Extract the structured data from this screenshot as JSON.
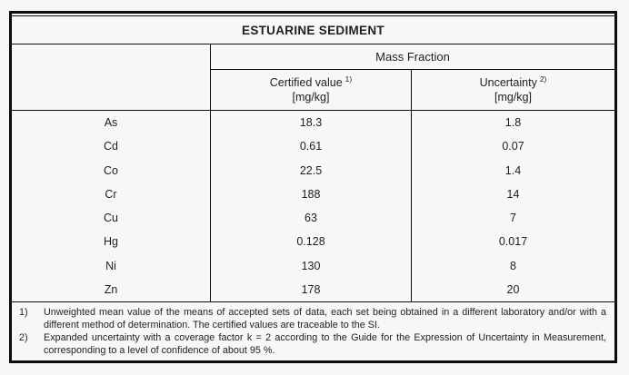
{
  "title": "ESTUARINE SEDIMENT",
  "table": {
    "group_header": "Mass Fraction",
    "columns": [
      {
        "label": "Certified value",
        "sup": "1)",
        "unit": "[mg/kg]"
      },
      {
        "label": "Uncertainty",
        "sup": "2)",
        "unit": "[mg/kg]"
      }
    ],
    "rows": [
      {
        "element": "As",
        "certified": "18.3",
        "uncertainty": "1.8"
      },
      {
        "element": "Cd",
        "certified": "0.61",
        "uncertainty": "0.07"
      },
      {
        "element": "Co",
        "certified": "22.5",
        "uncertainty": "1.4"
      },
      {
        "element": "Cr",
        "certified": "188",
        "uncertainty": "14"
      },
      {
        "element": "Cu",
        "certified": "63",
        "uncertainty": "7"
      },
      {
        "element": "Hg",
        "certified": "0.128",
        "uncertainty": "0.017"
      },
      {
        "element": "Ni",
        "certified": "130",
        "uncertainty": "8"
      },
      {
        "element": "Zn",
        "certified": "178",
        "uncertainty": "20"
      }
    ]
  },
  "footnotes": [
    {
      "marker": "1)",
      "text": "Unweighted mean value of the means of accepted sets of data, each set being obtained in a different laboratory and/or with a different method of determination. The certified values are traceable to the SI."
    },
    {
      "marker": "2)",
      "text": "Expanded uncertainty with a coverage factor k = 2 according to the Guide for the Expression of Uncertainty in Measurement, corresponding to a level of confidence of about 95 %."
    }
  ],
  "colors": {
    "background": "#f6f6f5",
    "border": "#0c0c0c",
    "text": "#1f1f1f"
  }
}
